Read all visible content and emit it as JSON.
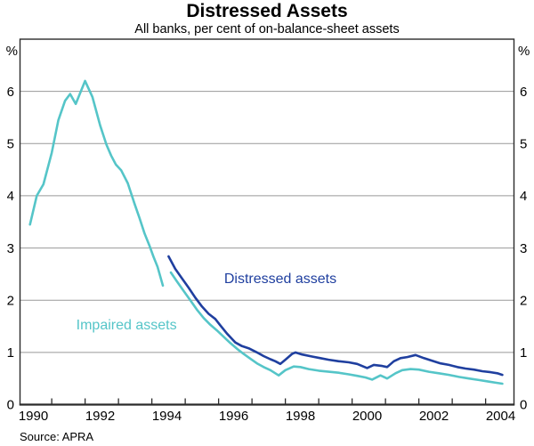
{
  "header": {
    "title": "Distressed Assets",
    "subtitle": "All banks, per cent of on-balance-sheet assets"
  },
  "footer": {
    "source": "Source: APRA"
  },
  "axes": {
    "unit_left": "%",
    "unit_right": "%"
  },
  "chart_data": {
    "type": "line",
    "title": "Distressed Assets",
    "subtitle": "All banks, per cent of on-balance-sheet assets",
    "source": "Source: APRA",
    "xlabel": "",
    "ylabel": "%",
    "xlim": [
      1990.05,
      2004.85
    ],
    "ylim": [
      0,
      7
    ],
    "grid": true,
    "y_gridlines": [
      1,
      2,
      3,
      4,
      5,
      6
    ],
    "y_tick_labels": [
      0,
      1,
      2,
      3,
      4,
      5,
      6
    ],
    "x_tick_years": [
      1991,
      1992,
      1993,
      1994,
      1995,
      1996,
      1997,
      1998,
      1999,
      2000,
      2001,
      2002,
      2003,
      2004
    ],
    "x_label_years": [
      1990,
      1992,
      1994,
      1996,
      1998,
      2000,
      2002,
      2004
    ],
    "colors": {
      "distressed": "#1f3f9f",
      "impaired": "#55c5c8",
      "grid": "#999999",
      "frame": "#2b2b2b",
      "text": "#000000"
    },
    "series": [
      {
        "key": "impaired_old",
        "name": "Impaired assets (pre-1994 series)",
        "color": "impaired",
        "points": [
          [
            1990.35,
            3.45
          ],
          [
            1990.55,
            4.0
          ],
          [
            1990.75,
            4.22
          ],
          [
            1991.0,
            4.82
          ],
          [
            1991.2,
            5.45
          ],
          [
            1991.4,
            5.82
          ],
          [
            1991.55,
            5.95
          ],
          [
            1991.72,
            5.76
          ],
          [
            1992.0,
            6.2
          ],
          [
            1992.22,
            5.89
          ],
          [
            1992.45,
            5.35
          ],
          [
            1992.64,
            4.98
          ],
          [
            1992.78,
            4.77
          ],
          [
            1992.92,
            4.6
          ],
          [
            1993.08,
            4.49
          ],
          [
            1993.28,
            4.24
          ],
          [
            1993.48,
            3.85
          ],
          [
            1993.63,
            3.57
          ],
          [
            1993.78,
            3.28
          ],
          [
            1993.92,
            3.06
          ],
          [
            1994.05,
            2.83
          ],
          [
            1994.17,
            2.64
          ],
          [
            1994.33,
            2.28
          ]
        ]
      },
      {
        "key": "distressed",
        "name": "Distressed assets",
        "color": "distressed",
        "points": [
          [
            1994.5,
            2.84
          ],
          [
            1994.7,
            2.6
          ],
          [
            1994.9,
            2.42
          ],
          [
            1995.1,
            2.24
          ],
          [
            1995.3,
            2.05
          ],
          [
            1995.5,
            1.88
          ],
          [
            1995.7,
            1.74
          ],
          [
            1995.9,
            1.64
          ],
          [
            1996.05,
            1.52
          ],
          [
            1996.25,
            1.36
          ],
          [
            1996.5,
            1.19
          ],
          [
            1996.7,
            1.12
          ],
          [
            1996.9,
            1.08
          ],
          [
            1997.15,
            1.0
          ],
          [
            1997.35,
            0.93
          ],
          [
            1997.55,
            0.87
          ],
          [
            1997.7,
            0.83
          ],
          [
            1997.85,
            0.78
          ],
          [
            1998.0,
            0.86
          ],
          [
            1998.2,
            0.97
          ],
          [
            1998.3,
            1.0
          ],
          [
            1998.5,
            0.96
          ],
          [
            1998.8,
            0.92
          ],
          [
            1999.05,
            0.89
          ],
          [
            1999.3,
            0.86
          ],
          [
            1999.6,
            0.83
          ],
          [
            1999.9,
            0.81
          ],
          [
            2000.15,
            0.78
          ],
          [
            2000.45,
            0.7
          ],
          [
            2000.65,
            0.76
          ],
          [
            2000.9,
            0.74
          ],
          [
            2001.05,
            0.72
          ],
          [
            2001.25,
            0.83
          ],
          [
            2001.45,
            0.89
          ],
          [
            2001.65,
            0.91
          ],
          [
            2001.9,
            0.95
          ],
          [
            2002.15,
            0.89
          ],
          [
            2002.4,
            0.84
          ],
          [
            2002.65,
            0.79
          ],
          [
            2002.9,
            0.76
          ],
          [
            2003.15,
            0.72
          ],
          [
            2003.4,
            0.69
          ],
          [
            2003.65,
            0.67
          ],
          [
            2003.9,
            0.64
          ],
          [
            2004.15,
            0.62
          ],
          [
            2004.35,
            0.6
          ],
          [
            2004.5,
            0.57
          ]
        ]
      },
      {
        "key": "impaired_new",
        "name": "Impaired assets",
        "color": "impaired",
        "points": [
          [
            1994.57,
            2.53
          ],
          [
            1994.75,
            2.36
          ],
          [
            1994.95,
            2.18
          ],
          [
            1995.15,
            2.0
          ],
          [
            1995.35,
            1.82
          ],
          [
            1995.55,
            1.66
          ],
          [
            1995.75,
            1.53
          ],
          [
            1995.95,
            1.42
          ],
          [
            1996.15,
            1.3
          ],
          [
            1996.35,
            1.18
          ],
          [
            1996.55,
            1.07
          ],
          [
            1996.75,
            0.97
          ],
          [
            1996.95,
            0.88
          ],
          [
            1997.15,
            0.79
          ],
          [
            1997.35,
            0.72
          ],
          [
            1997.55,
            0.66
          ],
          [
            1997.8,
            0.56
          ],
          [
            1998.0,
            0.66
          ],
          [
            1998.25,
            0.73
          ],
          [
            1998.45,
            0.72
          ],
          [
            1998.7,
            0.68
          ],
          [
            1999.0,
            0.65
          ],
          [
            1999.3,
            0.63
          ],
          [
            1999.6,
            0.61
          ],
          [
            1999.9,
            0.58
          ],
          [
            2000.15,
            0.55
          ],
          [
            2000.4,
            0.52
          ],
          [
            2000.6,
            0.48
          ],
          [
            2000.85,
            0.56
          ],
          [
            2001.05,
            0.5
          ],
          [
            2001.3,
            0.6
          ],
          [
            2001.5,
            0.66
          ],
          [
            2001.75,
            0.68
          ],
          [
            2002.0,
            0.67
          ],
          [
            2002.3,
            0.63
          ],
          [
            2002.6,
            0.6
          ],
          [
            2002.9,
            0.57
          ],
          [
            2003.2,
            0.53
          ],
          [
            2003.5,
            0.5
          ],
          [
            2003.8,
            0.47
          ],
          [
            2004.1,
            0.44
          ],
          [
            2004.3,
            0.42
          ],
          [
            2004.5,
            0.4
          ]
        ]
      }
    ],
    "annotations": [
      {
        "text": "Distressed assets",
        "x": 1997.85,
        "y": 2.33,
        "color": "distressed"
      },
      {
        "text": "Impaired assets",
        "x": 1993.24,
        "y": 1.44,
        "color": "impaired"
      }
    ],
    "legend_position": "none"
  }
}
